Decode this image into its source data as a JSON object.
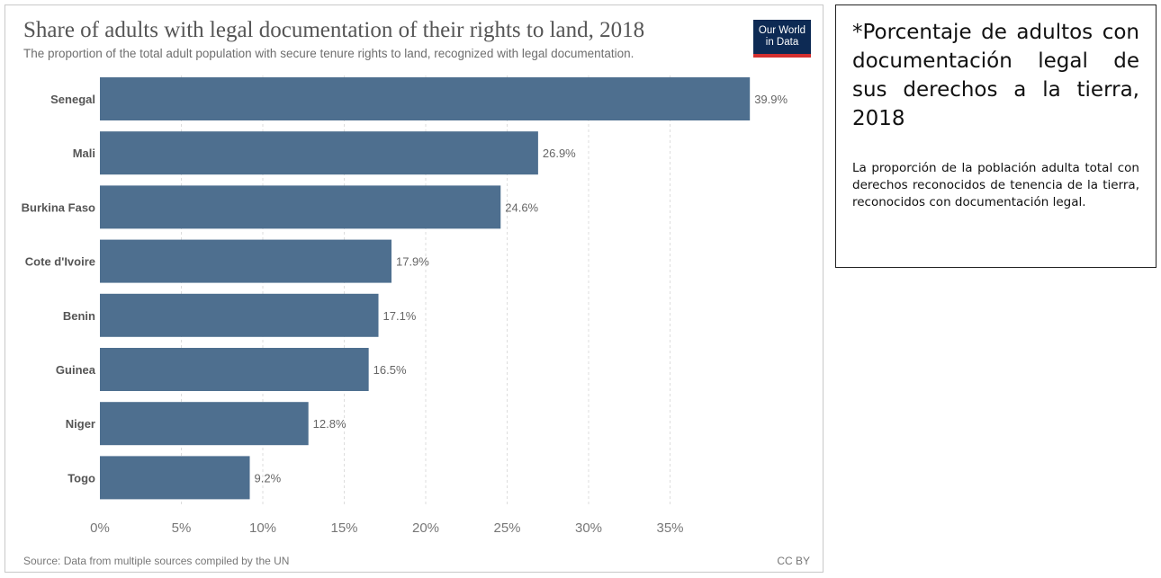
{
  "chart_data": {
    "type": "bar",
    "orientation": "horizontal",
    "title": "Share of adults with legal documentation of their rights to land, 2018",
    "subtitle": "The proportion of the total adult population with secure tenure rights to land, recognized with legal documentation.",
    "categories": [
      "Senegal",
      "Mali",
      "Burkina Faso",
      "Cote d'Ivoire",
      "Benin",
      "Guinea",
      "Niger",
      "Togo"
    ],
    "values": [
      39.9,
      26.9,
      24.6,
      17.9,
      17.1,
      16.5,
      12.8,
      9.2
    ],
    "value_labels": [
      "39.9%",
      "26.9%",
      "24.6%",
      "17.9%",
      "17.1%",
      "16.5%",
      "12.8%",
      "9.2%"
    ],
    "x_ticks": [
      0,
      5,
      10,
      15,
      20,
      25,
      30,
      35
    ],
    "x_tick_labels": [
      "0%",
      "5%",
      "10%",
      "15%",
      "20%",
      "25%",
      "30%",
      "35%"
    ],
    "xlim": [
      0,
      40
    ],
    "xlabel": "",
    "ylabel": "",
    "grid": "vertical dashed",
    "bar_color": "#4e6f8f",
    "source": "Source: Data from multiple sources compiled by the UN",
    "license": "CC BY"
  },
  "logo": {
    "line1": "Our World",
    "line2": "in Data",
    "bg_color": "#0d2a54",
    "accent_color": "#d32f2f"
  },
  "note": {
    "title": "*Porcentaje de adultos con documentación legal de sus derechos a la tierra, 2018",
    "body": "La proporción de la población adulta total con derechos reconocidos de tenencia de la tierra, reconocidos con documentación legal."
  }
}
